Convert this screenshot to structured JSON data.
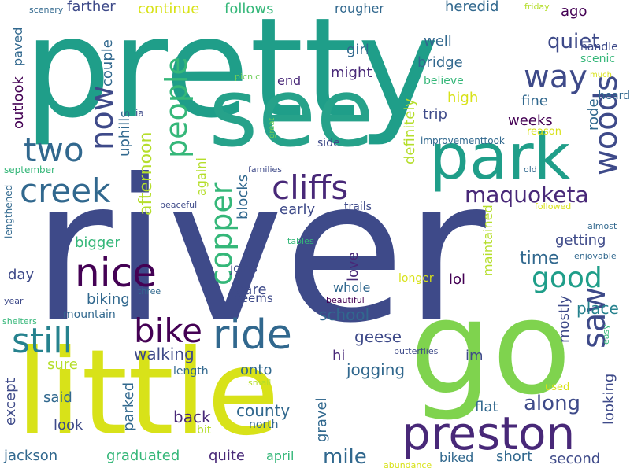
{
  "palette": {
    "navy": "#3e4a89",
    "blue": "#31688e",
    "teal": "#26828e",
    "green": "#1f9e89",
    "mint": "#35b779",
    "lime": "#6ece58",
    "chartreuse": "#b5de2b",
    "yellow": "#d8e219",
    "purple": "#482878",
    "indigo": "#440154"
  },
  "words": [
    {
      "text": "river",
      "color": "#3e4a89"
    },
    {
      "text": "pretty",
      "color": "#1f9e89"
    },
    {
      "text": "see",
      "color": "#26a28a"
    },
    {
      "text": "go",
      "color": "#7fd34e"
    },
    {
      "text": "little",
      "color": "#d8e219"
    },
    {
      "text": "park",
      "color": "#1f9e89"
    },
    {
      "text": "preston",
      "color": "#482878"
    },
    {
      "text": "ride",
      "color": "#31688e"
    },
    {
      "text": "bike",
      "color": "#440154"
    },
    {
      "text": "still",
      "color": "#26828e"
    },
    {
      "text": "nice",
      "color": "#440154"
    },
    {
      "text": "creek",
      "color": "#31688e"
    },
    {
      "text": "two",
      "color": "#31688e"
    },
    {
      "text": "now",
      "color": "#3e4a89"
    },
    {
      "text": "people",
      "color": "#35b779"
    },
    {
      "text": "cliffs",
      "color": "#482878"
    },
    {
      "text": "copper",
      "color": "#35b779"
    },
    {
      "text": "woods",
      "color": "#3e4a89"
    },
    {
      "text": "saw",
      "color": "#3e4a89"
    },
    {
      "text": "way",
      "color": "#3e4a89"
    },
    {
      "text": "good",
      "color": "#1f9e89"
    },
    {
      "text": "maquoketa",
      "color": "#482878"
    },
    {
      "text": "along",
      "color": "#3e4a89"
    },
    {
      "text": "mile",
      "color": "#31688e"
    },
    {
      "text": "county",
      "color": "#31688e"
    },
    {
      "text": "quiet",
      "color": "#3e4a89"
    },
    {
      "text": "time",
      "color": "#31688e"
    },
    {
      "text": "afternoon",
      "color": "#b5de2b"
    },
    {
      "text": "walking",
      "color": "#3e4a89"
    },
    {
      "text": "back",
      "color": "#482878"
    },
    {
      "text": "place",
      "color": "#26828e"
    },
    {
      "text": "jogging",
      "color": "#31688e"
    },
    {
      "text": "geese",
      "color": "#3e4a89"
    },
    {
      "text": "school",
      "color": "#31688e"
    },
    {
      "text": "biking",
      "color": "#31688e"
    },
    {
      "text": "getting",
      "color": "#3e4a89"
    },
    {
      "text": "graduated",
      "color": "#35b779"
    },
    {
      "text": "jackson",
      "color": "#31688e"
    },
    {
      "text": "except",
      "color": "#3e4a89"
    },
    {
      "text": "parked",
      "color": "#31688e"
    },
    {
      "text": "look",
      "color": "#3e4a89"
    },
    {
      "text": "said",
      "color": "#31688e"
    },
    {
      "text": "sure",
      "color": "#b5de2b"
    },
    {
      "text": "onto",
      "color": "#31688e"
    },
    {
      "text": "bigger",
      "color": "#35b779"
    },
    {
      "text": "day",
      "color": "#3e4a89"
    },
    {
      "text": "early",
      "color": "#3e4a89"
    },
    {
      "text": "blocks",
      "color": "#31688e"
    },
    {
      "text": "uphills",
      "color": "#31688e"
    },
    {
      "text": "couple",
      "color": "#31688e"
    },
    {
      "text": "outlook",
      "color": "#440154"
    },
    {
      "text": "paved",
      "color": "#31688e"
    },
    {
      "text": "farther",
      "color": "#3e4a89"
    },
    {
      "text": "continue",
      "color": "#d8e219"
    },
    {
      "text": "follows",
      "color": "#35b779"
    },
    {
      "text": "rougher",
      "color": "#31688e"
    },
    {
      "text": "heredid",
      "color": "#31688e"
    },
    {
      "text": "ago",
      "color": "#440154"
    },
    {
      "text": "well",
      "color": "#31688e"
    },
    {
      "text": "bridge",
      "color": "#31688e"
    },
    {
      "text": "girl",
      "color": "#31688e"
    },
    {
      "text": "might",
      "color": "#482878"
    },
    {
      "text": "end",
      "color": "#482878"
    },
    {
      "text": "high",
      "color": "#d8e219"
    },
    {
      "text": "trip",
      "color": "#3e4a89"
    },
    {
      "text": "fine",
      "color": "#31688e"
    },
    {
      "text": "weeks",
      "color": "#440154"
    },
    {
      "text": "rode",
      "color": "#31688e"
    },
    {
      "text": "heard",
      "color": "#31688e"
    },
    {
      "text": "definitely",
      "color": "#b5de2b"
    },
    {
      "text": "againi",
      "color": "#b5de2b"
    },
    {
      "text": "love",
      "color": "#482878"
    },
    {
      "text": "lol",
      "color": "#440154"
    },
    {
      "text": "maintained",
      "color": "#b5de2b"
    },
    {
      "text": "mostly",
      "color": "#3e4a89"
    },
    {
      "text": "looking",
      "color": "#3e4a89"
    },
    {
      "text": "flat",
      "color": "#31688e"
    },
    {
      "text": "hi",
      "color": "#482878"
    },
    {
      "text": "im",
      "color": "#3e4a89"
    },
    {
      "text": "gravel",
      "color": "#31688e"
    },
    {
      "text": "second",
      "color": "#3e4a89"
    },
    {
      "text": "short",
      "color": "#31688e"
    },
    {
      "text": "biked",
      "color": "#31688e"
    },
    {
      "text": "april",
      "color": "#35b779"
    },
    {
      "text": "quite",
      "color": "#482878"
    },
    {
      "text": "bare",
      "color": "#3e4a89"
    },
    {
      "text": "seems",
      "color": "#3e4a89"
    },
    {
      "text": "joins",
      "color": "#3e4a89"
    },
    {
      "text": "whole",
      "color": "#31688e"
    },
    {
      "text": "longer",
      "color": "#d8e219"
    },
    {
      "text": "trails",
      "color": "#3e4a89"
    },
    {
      "text": "mountain",
      "color": "#31688e"
    },
    {
      "text": "length",
      "color": "#31688e"
    },
    {
      "text": "north",
      "color": "#31688e"
    },
    {
      "text": "bit",
      "color": "#b5de2b"
    },
    {
      "text": "lengthened",
      "color": "#31688e"
    },
    {
      "text": "september",
      "color": "#35b779"
    },
    {
      "text": "side",
      "color": "#3e4a89"
    },
    {
      "text": "improvementtook",
      "color": "#31688e"
    },
    {
      "text": "reason",
      "color": "#d8e219"
    },
    {
      "text": "believe",
      "color": "#35b779"
    },
    {
      "text": "scenic",
      "color": "#35b779"
    },
    {
      "text": "handle",
      "color": "#3e4a89"
    },
    {
      "text": "much",
      "color": "#d8e219"
    },
    {
      "text": "friday",
      "color": "#b5de2b"
    },
    {
      "text": "scenery",
      "color": "#31688e"
    },
    {
      "text": "picnic",
      "color": "#6ece58"
    },
    {
      "text": "ia",
      "color": "#3e4a89"
    },
    {
      "text": "great",
      "color": "#6ece58"
    },
    {
      "text": "families",
      "color": "#3e4a89"
    },
    {
      "text": "old",
      "color": "#31688e"
    },
    {
      "text": "peaceful",
      "color": "#3e4a89"
    },
    {
      "text": "followed",
      "color": "#d8e219"
    },
    {
      "text": "almost",
      "color": "#31688e"
    },
    {
      "text": "enjoyable",
      "color": "#31688e"
    },
    {
      "text": "tables",
      "color": "#35b779"
    },
    {
      "text": "three",
      "color": "#31688e"
    },
    {
      "text": "year",
      "color": "#3e4a89"
    },
    {
      "text": "beautiful",
      "color": "#440154"
    },
    {
      "text": "shelters",
      "color": "#35b779"
    },
    {
      "text": "butterflies",
      "color": "#3e4a89"
    },
    {
      "text": "easy",
      "color": "#35b779"
    },
    {
      "text": "small",
      "color": "#b5de2b"
    },
    {
      "text": "used",
      "color": "#d8e219"
    },
    {
      "text": "abundance",
      "color": "#d8e219"
    }
  ]
}
